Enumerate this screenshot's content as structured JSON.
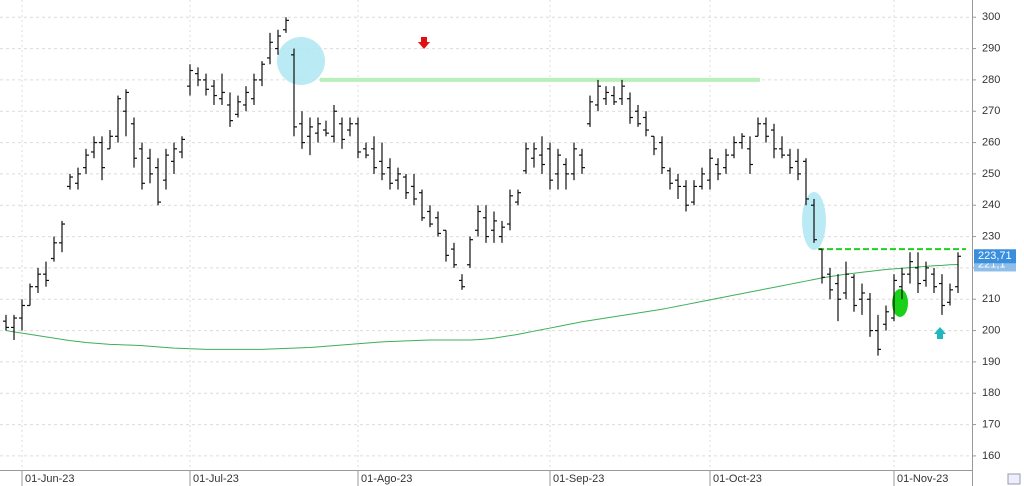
{
  "chart_data": {
    "type": "ohlc",
    "categories": [
      null,
      null,
      "01-Jun-23",
      null,
      null,
      null,
      null,
      null,
      null,
      null,
      null,
      null,
      null,
      null,
      null,
      null,
      null,
      null,
      null,
      null,
      null,
      null,
      null,
      "01-Jul-23",
      null,
      null,
      null,
      null,
      null,
      null,
      null,
      null,
      null,
      null,
      null,
      null,
      null,
      null,
      null,
      null,
      null,
      null,
      null,
      null,
      "01-Ago-23",
      null,
      null,
      null,
      null,
      null,
      null,
      null,
      null,
      null,
      null,
      null,
      null,
      null,
      null,
      null,
      null,
      null,
      null,
      null,
      null,
      null,
      null,
      null,
      "01-Sep-23",
      null,
      null,
      null,
      null,
      null,
      null,
      null,
      null,
      null,
      null,
      null,
      null,
      null,
      null,
      null,
      null,
      null,
      null,
      null,
      "01-Oct-23",
      null,
      null,
      null,
      null,
      null,
      null,
      null,
      null,
      null,
      null,
      null,
      null,
      null,
      null,
      null,
      null,
      null,
      null,
      null,
      null,
      null,
      null,
      "01-Nov-23",
      null,
      null,
      null,
      null,
      null,
      null,
      null,
      null
    ],
    "open": [
      203,
      201,
      204,
      208,
      214,
      218,
      223,
      228,
      246,
      247,
      252,
      257,
      260,
      258,
      262,
      270,
      266,
      258,
      255,
      252,
      248,
      254,
      257,
      278,
      282,
      280,
      278,
      274,
      272,
      269,
      272,
      274,
      280,
      287,
      290,
      296,
      288,
      266,
      262,
      263,
      264,
      262,
      266,
      264,
      266,
      258,
      258,
      254,
      252,
      248,
      249,
      246,
      244,
      238,
      236,
      232,
      226,
      216,
      221,
      232,
      236,
      232,
      230,
      234,
      241,
      251,
      255,
      256,
      258,
      250,
      253,
      250,
      256,
      266,
      272,
      274,
      275,
      274,
      274,
      270,
      268,
      262,
      260,
      251,
      248,
      246,
      241,
      246,
      248,
      253,
      252,
      256,
      260,
      258,
      262,
      266,
      264,
      258,
      256,
      254,
      254,
      240,
      226,
      218,
      215,
      212,
      217,
      210,
      210,
      200,
      202,
      204,
      214,
      218,
      220,
      216,
      218,
      215,
      209,
      214
    ],
    "high": [
      205,
      205,
      210,
      215,
      220,
      222,
      230,
      235,
      250,
      252,
      258,
      262,
      262,
      264,
      275,
      277,
      268,
      260,
      258,
      255,
      258,
      260,
      262,
      285,
      284,
      282,
      280,
      282,
      276,
      275,
      278,
      282,
      286,
      295,
      296,
      300,
      290,
      270,
      268,
      268,
      267,
      272,
      268,
      268,
      268,
      260,
      262,
      260,
      255,
      252,
      250,
      250,
      245,
      240,
      238,
      232,
      228,
      218,
      230,
      240,
      240,
      238,
      235,
      245,
      245,
      260,
      260,
      262,
      260,
      258,
      255,
      260,
      258,
      275,
      280,
      278,
      278,
      280,
      276,
      272,
      270,
      262,
      262,
      252,
      250,
      248,
      248,
      252,
      258,
      255,
      258,
      262,
      263,
      262,
      268,
      268,
      266,
      262,
      258,
      258,
      255,
      242,
      226,
      220,
      218,
      222,
      218,
      215,
      212,
      205,
      208,
      218,
      220,
      225,
      225,
      222,
      220,
      218,
      215,
      225
    ],
    "low": [
      200,
      197,
      200,
      208,
      212,
      214,
      222,
      225,
      245,
      245,
      250,
      255,
      248,
      258,
      260,
      262,
      252,
      245,
      247,
      240,
      245,
      250,
      255,
      275,
      278,
      275,
      272,
      272,
      265,
      268,
      270,
      272,
      278,
      285,
      288,
      295,
      262,
      258,
      256,
      260,
      262,
      260,
      258,
      262,
      255,
      255,
      250,
      248,
      245,
      245,
      242,
      240,
      235,
      233,
      230,
      222,
      220,
      213,
      220,
      230,
      228,
      228,
      228,
      232,
      240,
      250,
      252,
      250,
      245,
      245,
      245,
      248,
      250,
      265,
      270,
      272,
      272,
      272,
      266,
      265,
      262,
      256,
      250,
      245,
      242,
      238,
      240,
      245,
      245,
      248,
      250,
      255,
      258,
      250,
      262,
      260,
      255,
      255,
      250,
      248,
      240,
      228,
      215,
      210,
      203,
      210,
      206,
      205,
      198,
      192,
      200,
      203,
      210,
      215,
      212,
      214,
      212,
      205,
      208,
      212
    ],
    "close": [
      201,
      204,
      208,
      214,
      218,
      216,
      228,
      234,
      249,
      250,
      256,
      260,
      252,
      262,
      274,
      276,
      255,
      247,
      250,
      241,
      256,
      258,
      261,
      283,
      280,
      277,
      275,
      276,
      267,
      273,
      276,
      280,
      285,
      292,
      294,
      299,
      265,
      260,
      265,
      266,
      263,
      270,
      261,
      266,
      257,
      256,
      252,
      250,
      247,
      250,
      244,
      242,
      236,
      234,
      231,
      224,
      221,
      214,
      229,
      238,
      230,
      235,
      233,
      243,
      244,
      258,
      258,
      253,
      248,
      256,
      250,
      258,
      252,
      273,
      278,
      276,
      273,
      278,
      268,
      266,
      264,
      258,
      252,
      247,
      246,
      240,
      246,
      250,
      255,
      250,
      256,
      260,
      262,
      253,
      266,
      262,
      258,
      256,
      252,
      250,
      242,
      229,
      217,
      213,
      210,
      218,
      208,
      212,
      200,
      194,
      206,
      216,
      218,
      222,
      215,
      220,
      214,
      208,
      213,
      223.71
    ],
    "bar_color": "#111111",
    "ma": {
      "color": "#3cb05a",
      "values": [
        200,
        199.6,
        199.2,
        198.8,
        198.4,
        198,
        197.6,
        197.2,
        196.8,
        196.5,
        196.2,
        196,
        195.8,
        195.6,
        195.5,
        195.4,
        195.3,
        195.2,
        195,
        194.8,
        194.6,
        194.4,
        194.3,
        194.2,
        194.1,
        194,
        194,
        194,
        194,
        194,
        194,
        194,
        194,
        194.1,
        194.2,
        194.3,
        194.4,
        194.5,
        194.6,
        194.8,
        195,
        195.2,
        195.4,
        195.6,
        195.8,
        196,
        196.2,
        196.4,
        196.5,
        196.6,
        196.7,
        196.8,
        196.9,
        197,
        197,
        197,
        197,
        197,
        197,
        197.1,
        197.3,
        197.6,
        198,
        198.4,
        198.8,
        199.3,
        199.8,
        200.3,
        200.8,
        201.3,
        201.8,
        202.3,
        202.8,
        203.2,
        203.6,
        204,
        204.4,
        204.8,
        205.2,
        205.6,
        206,
        206.4,
        206.8,
        207.3,
        207.8,
        208.3,
        208.8,
        209.3,
        209.8,
        210.3,
        210.8,
        211.3,
        211.8,
        212.3,
        212.8,
        213.3,
        213.8,
        214.3,
        214.8,
        215.3,
        215.8,
        216.3,
        216.8,
        217.2,
        217.6,
        218,
        218.3,
        218.6,
        218.9,
        219.2,
        219.5,
        219.7,
        219.9,
        220.1,
        220.3,
        220.5,
        220.7,
        220.8,
        221,
        221.1
      ]
    },
    "last_labels": [
      {
        "value": 221.1,
        "label": "221,1",
        "color": "#8fbfe8"
      },
      {
        "value": 223.71,
        "label": "223,71",
        "color": "#3a8ede"
      }
    ],
    "hlines": [
      {
        "value": 280,
        "color": "#b9f0b9",
        "dash": false
      },
      {
        "value": 226,
        "color": "#1fd11f",
        "dash": true
      }
    ],
    "ylim": [
      155.5,
      305.5
    ],
    "yticks": [
      160,
      170,
      180,
      190,
      200,
      210,
      220,
      230,
      240,
      250,
      260,
      270,
      280,
      290,
      300
    ],
    "grid": true
  }
}
